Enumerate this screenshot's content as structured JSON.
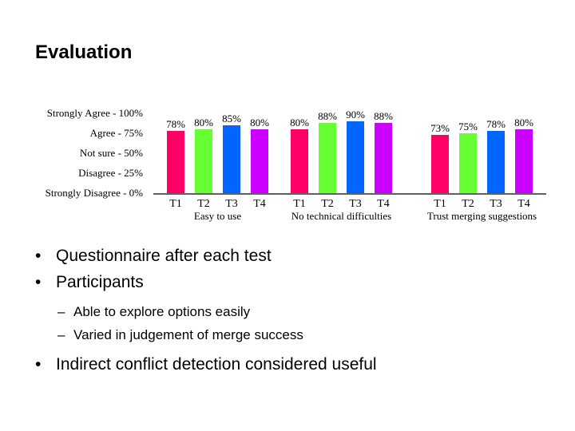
{
  "slide": {
    "title": "Evaluation"
  },
  "bullets": [
    {
      "text": "Questionnaire after each test"
    },
    {
      "text": "Participants",
      "sub": [
        "Able to explore options easily",
        "Varied in judgement of merge success"
      ]
    },
    {
      "text": "Indirect conflict detection considered useful"
    }
  ],
  "markers": {
    "bullet": "•",
    "dash": "–"
  },
  "chart_data": {
    "type": "bar",
    "title": "",
    "xlabel": "",
    "ylabel": "",
    "ylim": [
      0,
      100
    ],
    "grid": false,
    "y_ticks": [
      {
        "value": 100,
        "label": "Strongly Agree - 100%"
      },
      {
        "value": 75,
        "label": "Agree - 75%"
      },
      {
        "value": 50,
        "label": "Not sure - 50%"
      },
      {
        "value": 25,
        "label": "Disagree - 25%"
      },
      {
        "value": 0,
        "label": "Strongly Disagree - 0%"
      }
    ],
    "series_colors": [
      "#ff0066",
      "#66ff33",
      "#0066ff",
      "#cc00ff"
    ],
    "groups": [
      {
        "label": "Easy to use",
        "categories": [
          "T1",
          "T2",
          "T3",
          "T4"
        ],
        "values": [
          78,
          80,
          85,
          80
        ],
        "value_labels": [
          "78%",
          "80%",
          "85%",
          "80%"
        ]
      },
      {
        "label": "No technical difficulties",
        "categories": [
          "T1",
          "T2",
          "T3",
          "T4"
        ],
        "values": [
          80,
          88,
          90,
          88
        ],
        "value_labels": [
          "80%",
          "88%",
          "90%",
          "88%"
        ]
      },
      {
        "label": "Trust merging suggestions",
        "categories": [
          "T1",
          "T2",
          "T3",
          "T4"
        ],
        "values": [
          73,
          75,
          78,
          80
        ],
        "value_labels": [
          "73%",
          "75%",
          "78%",
          "80%"
        ]
      }
    ]
  }
}
